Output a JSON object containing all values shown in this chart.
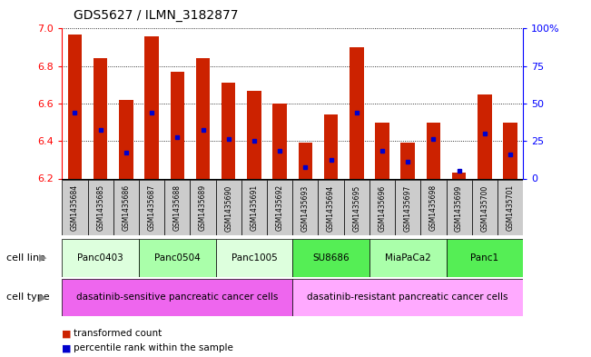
{
  "title": "GDS5627 / ILMN_3182877",
  "samples": [
    "GSM1435684",
    "GSM1435685",
    "GSM1435686",
    "GSM1435687",
    "GSM1435688",
    "GSM1435689",
    "GSM1435690",
    "GSM1435691",
    "GSM1435692",
    "GSM1435693",
    "GSM1435694",
    "GSM1435695",
    "GSM1435696",
    "GSM1435697",
    "GSM1435698",
    "GSM1435699",
    "GSM1435700",
    "GSM1435701"
  ],
  "bar_heights": [
    6.97,
    6.84,
    6.62,
    6.96,
    6.77,
    6.84,
    6.71,
    6.67,
    6.6,
    6.39,
    6.54,
    6.9,
    6.5,
    6.39,
    6.5,
    6.23,
    6.65,
    6.5
  ],
  "percentile_values": [
    6.55,
    6.46,
    6.34,
    6.55,
    6.42,
    6.46,
    6.41,
    6.4,
    6.35,
    6.26,
    6.3,
    6.55,
    6.35,
    6.29,
    6.41,
    6.24,
    6.44,
    6.33
  ],
  "ylim_left": [
    6.2,
    7.0
  ],
  "ylim_right": [
    0,
    100
  ],
  "yticks_left": [
    6.2,
    6.4,
    6.6,
    6.8,
    7.0
  ],
  "yticks_right": [
    0,
    25,
    50,
    75,
    100
  ],
  "bar_color": "#cc2200",
  "marker_color": "#0000cc",
  "cell_lines": [
    {
      "label": "Panc0403",
      "start": 0,
      "end": 3,
      "color": "#ddffdd"
    },
    {
      "label": "Panc0504",
      "start": 3,
      "end": 6,
      "color": "#aaffaa"
    },
    {
      "label": "Panc1005",
      "start": 6,
      "end": 9,
      "color": "#ddffdd"
    },
    {
      "label": "SU8686",
      "start": 9,
      "end": 12,
      "color": "#55ee55"
    },
    {
      "label": "MiaPaCa2",
      "start": 12,
      "end": 15,
      "color": "#aaffaa"
    },
    {
      "label": "Panc1",
      "start": 15,
      "end": 18,
      "color": "#55ee55"
    }
  ],
  "cell_types": [
    {
      "label": "dasatinib-sensitive pancreatic cancer cells",
      "start": 0,
      "end": 9,
      "color": "#ee66ee"
    },
    {
      "label": "dasatinib-resistant pancreatic cancer cells",
      "start": 9,
      "end": 18,
      "color": "#ffaaff"
    }
  ],
  "legend_items": [
    {
      "label": "transformed count",
      "color": "#cc2200"
    },
    {
      "label": "percentile rank within the sample",
      "color": "#0000cc"
    }
  ],
  "cell_line_label": "cell line",
  "cell_type_label": "cell type",
  "bar_width": 0.55,
  "sample_box_color": "#cccccc",
  "left_label_color": "#888888"
}
